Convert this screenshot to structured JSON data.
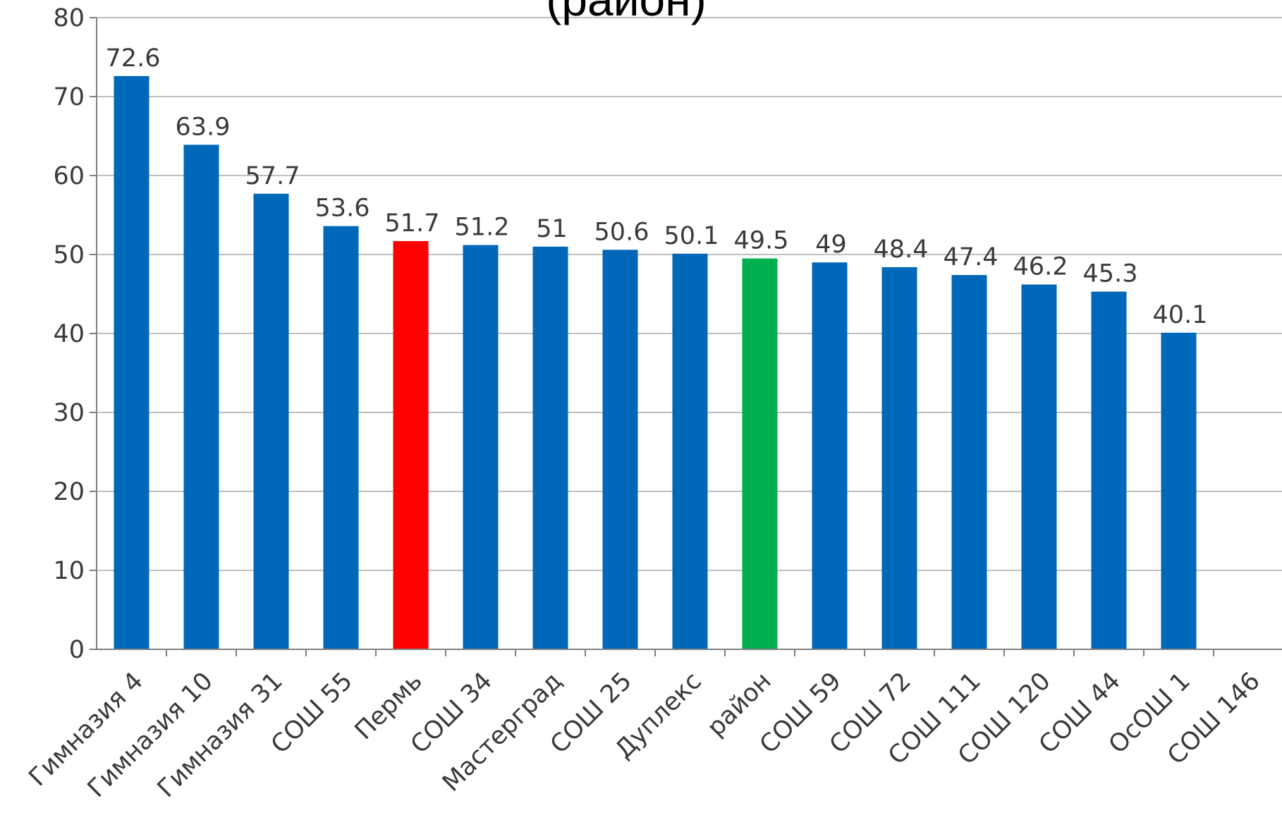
{
  "chart_data": {
    "type": "bar",
    "title": "(район)",
    "xlabel": "",
    "ylabel": "",
    "ylim": [
      0,
      80
    ],
    "yticks": [
      0,
      10,
      20,
      30,
      40,
      50,
      60,
      70,
      80
    ],
    "grid": true,
    "legend": "none",
    "categories": [
      "Гимназия 4",
      "Гимназия 10",
      "Гимназия 31",
      "СОШ 55",
      "Пермь",
      "СОШ 34",
      "Мастерград",
      "СОШ 25",
      "Дуплекс",
      "район",
      "СОШ 59",
      "СОШ 72",
      "СОШ 111",
      "СОШ 120",
      "СОШ 44",
      "ОсОШ 1",
      "СОШ 146"
    ],
    "values": [
      72.6,
      63.9,
      57.7,
      53.6,
      51.7,
      51.2,
      51,
      50.6,
      50.1,
      49.5,
      49,
      48.4,
      47.4,
      46.2,
      45.3,
      40.1,
      null
    ],
    "data_labels": [
      "72.6",
      "63.9",
      "57.7",
      "53.6",
      "51.7",
      "51.2",
      "51",
      "50.6",
      "50.1",
      "49.5",
      "49",
      "48.4",
      "47.4",
      "46.2",
      "45.3",
      "40.1",
      ""
    ],
    "colors": {
      "default": "#0068b8",
      "Пермь": "#ff0000",
      "район": "#00b050"
    },
    "grid_color": "#bfbfbf",
    "axis_color": "#808080"
  }
}
